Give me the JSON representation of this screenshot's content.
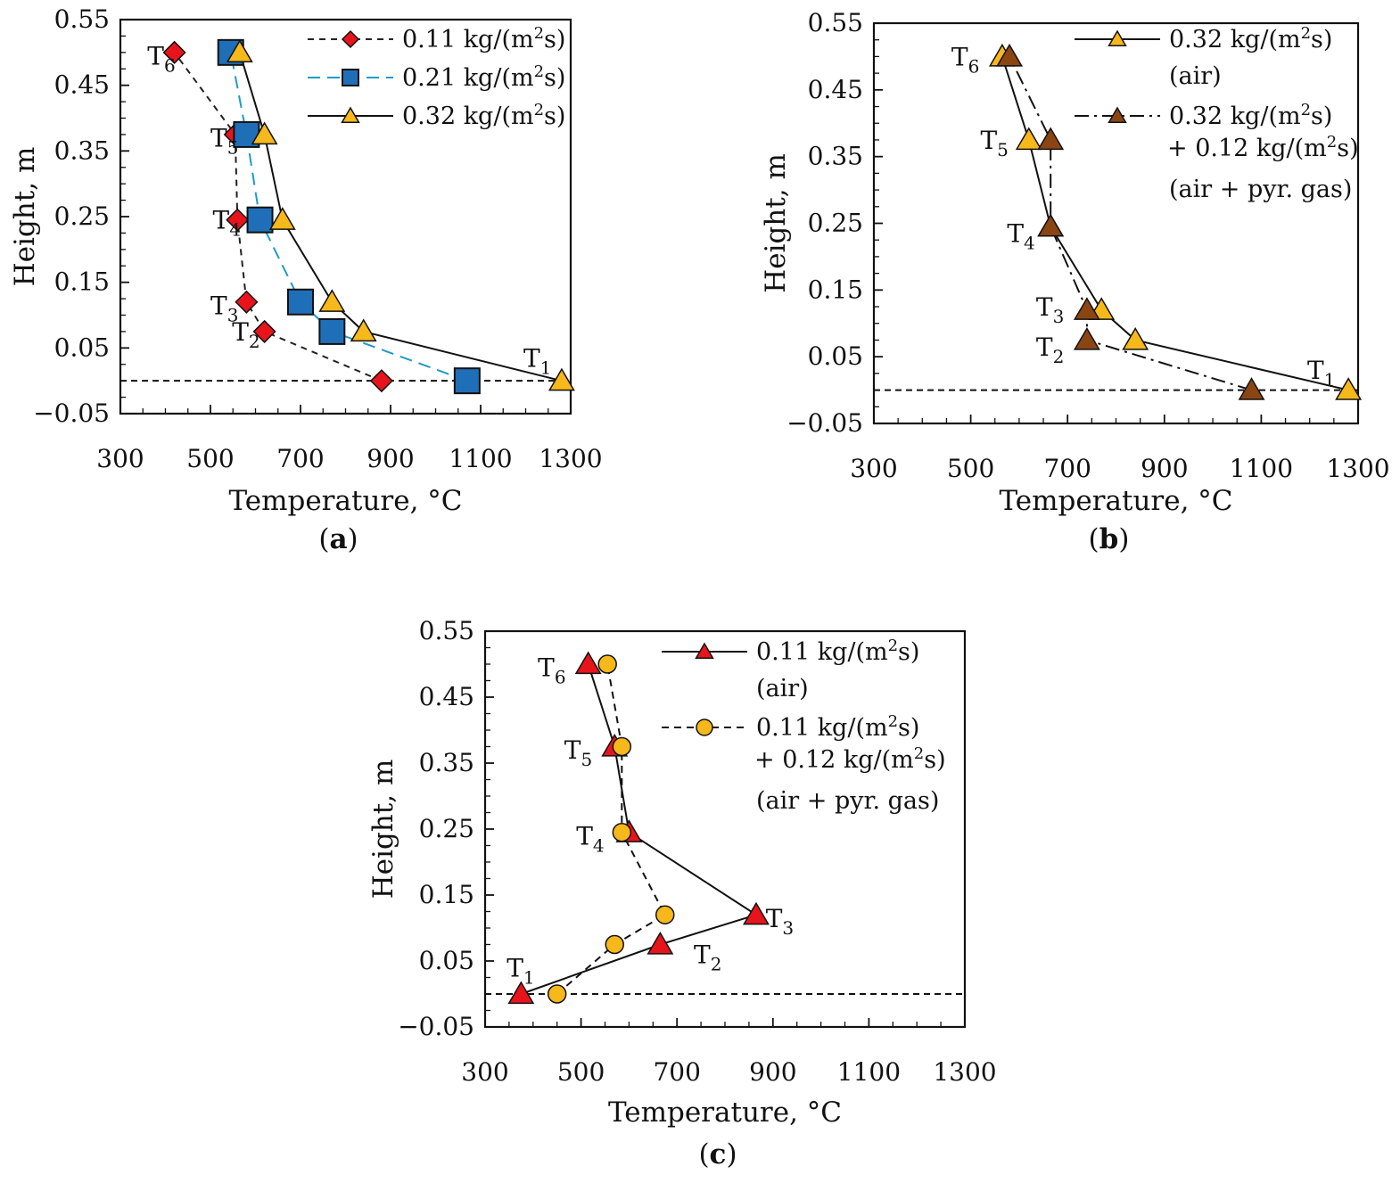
{
  "chart_data": [
    {
      "type": "line",
      "id": "a",
      "panel_label": "a",
      "xlabel": "Temperature, °C",
      "ylabel": "Height, m",
      "xlim": [
        300,
        1300
      ],
      "ylim": [
        -0.05,
        0.55
      ],
      "xticks": [
        "300",
        "500",
        "700",
        "900",
        "1100",
        "1300"
      ],
      "yticks": [
        "0.55",
        "0.45",
        "0.35",
        "0.25",
        "0.15",
        "0.05",
        "−0.05"
      ],
      "x_tick_values": [
        300,
        500,
        700,
        900,
        1100,
        1300
      ],
      "y_tick_values": [
        0.55,
        0.45,
        0.35,
        0.25,
        0.15,
        0.05,
        -0.05
      ],
      "reference_line_y": 0,
      "series": [
        {
          "name": "0.11 kg/(m²s)",
          "legend_main": "0.11 kg/(m",
          "legend_sup": "2",
          "legend_end": "s)",
          "color": "#e8141c",
          "line_color": "#222222",
          "dash": "7,6",
          "marker": "diamond",
          "x": [
            880,
            620,
            580,
            560,
            555,
            420
          ],
          "y": [
            0,
            0.075,
            0.12,
            0.245,
            0.375,
            0.5
          ]
        },
        {
          "name": "0.21 kg/(m²s)",
          "legend_main": "0.21 kg/(m",
          "legend_sup": "2",
          "legend_end": "s)",
          "color": "#1f6fb8",
          "line_color": "#1f9bc6",
          "dash": "14,8",
          "marker": "square",
          "x": [
            1070,
            770,
            700,
            610,
            580,
            545
          ],
          "y": [
            0,
            0.075,
            0.12,
            0.245,
            0.375,
            0.5
          ]
        },
        {
          "name": "0.32 kg/(m²s)",
          "legend_main": "0.32 kg/(m",
          "legend_sup": "2",
          "legend_end": "s)",
          "color": "#f6b81a",
          "line_color": "#111111",
          "dash": "",
          "marker": "triangle",
          "x": [
            1280,
            840,
            770,
            660,
            620,
            565
          ],
          "y": [
            0,
            0.075,
            0.12,
            0.245,
            0.375,
            0.5
          ]
        }
      ],
      "point_labels": [
        {
          "text": "T",
          "sub": "1",
          "x": 1195,
          "y": 0.035
        },
        {
          "text": "T",
          "sub": "2",
          "x": 548,
          "y": 0.075
        },
        {
          "text": "T",
          "sub": "3",
          "x": 500,
          "y": 0.115
        },
        {
          "text": "T",
          "sub": "4",
          "x": 505,
          "y": 0.245
        },
        {
          "text": "T",
          "sub": "5",
          "x": 500,
          "y": 0.37
        },
        {
          "text": "T",
          "sub": "6",
          "x": 360,
          "y": 0.495
        }
      ]
    },
    {
      "type": "line",
      "id": "b",
      "panel_label": "b",
      "xlabel": "Temperature, °C",
      "ylabel": "Height, m",
      "xlim": [
        300,
        1300
      ],
      "ylim": [
        -0.05,
        0.55
      ],
      "xticks": [
        "300",
        "500",
        "700",
        "900",
        "1100",
        "1300"
      ],
      "yticks": [
        "0.55",
        "0.45",
        "0.35",
        "0.25",
        "0.15",
        "0.05",
        "−0.05"
      ],
      "x_tick_values": [
        300,
        500,
        700,
        900,
        1100,
        1300
      ],
      "y_tick_values": [
        0.55,
        0.45,
        0.35,
        0.25,
        0.15,
        0.05,
        -0.05
      ],
      "reference_line_y": 0,
      "series": [
        {
          "name": "0.32 kg/(m²s) (air)",
          "legend_main": "0.32 kg/(m",
          "legend_sup": "2",
          "legend_end": "s)",
          "legend_line2": "(air)",
          "color": "#f6b81a",
          "line_color": "#111111",
          "dash": "",
          "marker": "triangle",
          "x": [
            1280,
            840,
            770,
            665,
            620,
            565
          ],
          "y": [
            0,
            0.075,
            0.12,
            0.245,
            0.375,
            0.5
          ]
        },
        {
          "name": "0.32 kg/(m²s) + 0.12 kg/(m²s) (air + pyr. gas)",
          "legend_main": "0.32 kg/(m",
          "legend_sup": "2",
          "legend_end": "s)",
          "legend_line2_main": "+ 0.12 kg/(m",
          "legend_line2_sup": "2",
          "legend_line2_end": "s)",
          "legend_line3": "(air + pyr. gas)",
          "color": "#8b4513",
          "line_color": "#111111",
          "dash": "16,6,3,6",
          "marker": "triangle",
          "x": [
            1080,
            740,
            740,
            665,
            665,
            580
          ],
          "y": [
            0,
            0.075,
            0.12,
            0.245,
            0.375,
            0.5
          ]
        }
      ],
      "point_labels": [
        {
          "text": "T",
          "sub": "1",
          "x": 1195,
          "y": 0.03
        },
        {
          "text": "T",
          "sub": "2",
          "x": 635,
          "y": 0.065
        },
        {
          "text": "T",
          "sub": "3",
          "x": 635,
          "y": 0.125
        },
        {
          "text": "T",
          "sub": "4",
          "x": 575,
          "y": 0.235
        },
        {
          "text": "T",
          "sub": "5",
          "x": 520,
          "y": 0.375
        },
        {
          "text": "T",
          "sub": "6",
          "x": 460,
          "y": 0.5
        }
      ]
    },
    {
      "type": "line",
      "id": "c",
      "panel_label": "c",
      "xlabel": "Temperature, °C",
      "ylabel": "Height, m",
      "xlim": [
        300,
        1300
      ],
      "ylim": [
        -0.05,
        0.55
      ],
      "xticks": [
        "300",
        "500",
        "700",
        "900",
        "1100",
        "1300"
      ],
      "yticks": [
        "0.55",
        "0.45",
        "0.35",
        "0.25",
        "0.15",
        "0.05",
        "−0.05"
      ],
      "x_tick_values": [
        300,
        500,
        700,
        900,
        1100,
        1300
      ],
      "y_tick_values": [
        0.55,
        0.45,
        0.35,
        0.25,
        0.15,
        0.05,
        -0.05
      ],
      "reference_line_y": 0,
      "series": [
        {
          "name": "0.11 kg/(m²s) (air)",
          "legend_main": "0.11 kg/(m",
          "legend_sup": "2",
          "legend_end": "s)",
          "legend_line2": "(air)",
          "color": "#e8141c",
          "line_color": "#111111",
          "dash": "",
          "marker": "triangle",
          "x": [
            375,
            665,
            865,
            600,
            570,
            515
          ],
          "y": [
            0,
            0.075,
            0.12,
            0.245,
            0.375,
            0.5
          ]
        },
        {
          "name": "0.11 kg/(m²s) + 0.12 kg/(m²s) (air + pyr. gas)",
          "legend_main": "0.11 kg/(m",
          "legend_sup": "2",
          "legend_end": "s)",
          "legend_line2_main": "+ 0.12 kg/(m",
          "legend_line2_sup": "2",
          "legend_line2_end": "s)",
          "legend_line3": "(air + pyr. gas)",
          "color": "#f6b81a",
          "line_color": "#111111",
          "dash": "8,6",
          "marker": "circle",
          "x": [
            450,
            570,
            675,
            585,
            585,
            555
          ],
          "y": [
            0,
            0.075,
            0.12,
            0.245,
            0.375,
            0.5
          ]
        }
      ],
      "point_labels": [
        {
          "text": "T",
          "sub": "1",
          "x": 345,
          "y": 0.04
        },
        {
          "text": "T",
          "sub": "2",
          "x": 735,
          "y": 0.06
        },
        {
          "text": "T",
          "sub": "3",
          "x": 885,
          "y": 0.115
        },
        {
          "text": "T",
          "sub": "4",
          "x": 490,
          "y": 0.24
        },
        {
          "text": "T",
          "sub": "5",
          "x": 465,
          "y": 0.37
        },
        {
          "text": "T",
          "sub": "6",
          "x": 410,
          "y": 0.495
        }
      ]
    }
  ]
}
